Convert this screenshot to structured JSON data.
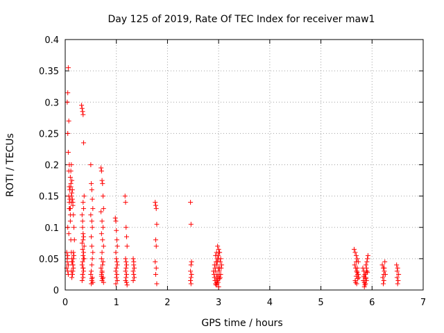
{
  "chart_data": {
    "type": "scatter",
    "title": "Day 125 of 2019, Rate Of TEC Index for receiver maw1",
    "xlabel": "GPS time / hours",
    "ylabel": "ROTI / TECUs",
    "xlim": [
      0,
      7
    ],
    "ylim": [
      0,
      0.4
    ],
    "xticks": [
      0,
      1,
      2,
      3,
      4,
      5,
      6,
      7
    ],
    "xtick_labels": [
      "0",
      "1",
      "2",
      "3",
      "4",
      "5",
      "6",
      "7"
    ],
    "yticks": [
      0,
      0.05,
      0.1,
      0.15,
      0.2,
      0.25,
      0.3,
      0.35,
      0.4
    ],
    "ytick_labels": [
      "0",
      "0.05",
      "0.1",
      "0.15",
      "0.2",
      "0.25",
      "0.3",
      "0.35",
      "0.4"
    ],
    "grid": true,
    "marker": "+",
    "color": "#ff0000",
    "series": [
      {
        "name": "ROTI",
        "x": [
          0.03,
          0.04,
          0.05,
          0.06,
          0.03,
          0.04,
          0.05,
          0.06,
          0.05,
          0.07,
          0.08,
          0.07,
          0.08,
          0.09,
          0.1,
          0.11,
          0.12,
          0.1,
          0.11,
          0.12,
          0.13,
          0.14,
          0.15,
          0.13,
          0.14,
          0.15,
          0.16,
          0.17,
          0.16,
          0.15,
          0.14,
          0.13,
          0.12,
          0.11,
          0.1,
          0.09,
          0.08,
          0.07,
          0.06,
          0.05,
          0.04,
          0.05,
          0.06,
          0.07,
          0.08,
          0.09,
          0.1,
          0.11,
          0.12,
          0.13,
          0.14,
          0.15,
          0.16,
          0.17,
          0.18,
          0.16,
          0.15,
          0.14,
          0.13,
          0.12,
          0.32,
          0.33,
          0.34,
          0.35,
          0.36,
          0.37,
          0.35,
          0.33,
          0.34,
          0.36,
          0.35,
          0.33,
          0.34,
          0.36,
          0.35,
          0.37,
          0.34,
          0.33,
          0.35,
          0.36,
          0.34,
          0.35,
          0.33,
          0.36,
          0.34,
          0.35,
          0.37,
          0.36,
          0.35,
          0.34,
          0.5,
          0.51,
          0.52,
          0.53,
          0.54,
          0.5,
          0.52,
          0.53,
          0.51,
          0.52,
          0.54,
          0.53,
          0.52,
          0.51,
          0.5,
          0.53,
          0.52,
          0.54,
          0.51,
          0.52,
          0.7,
          0.71,
          0.72,
          0.73,
          0.74,
          0.75,
          0.7,
          0.72,
          0.74,
          0.71,
          0.73,
          0.75,
          0.72,
          0.71,
          0.74,
          0.73,
          0.7,
          0.72,
          0.71,
          0.74,
          0.73,
          0.72,
          0.75,
          0.71,
          0.72,
          0.98,
          0.99,
          1.0,
          1.01,
          1.02,
          0.99,
          1.0,
          1.01,
          1.02,
          1.0,
          0.99,
          1.01,
          1.0,
          1.02,
          0.99,
          1.17,
          1.18,
          1.19,
          1.2,
          1.21,
          1.18,
          1.19,
          1.2,
          1.19,
          1.18,
          1.2,
          1.19,
          1.18,
          1.2,
          1.21,
          1.33,
          1.34,
          1.35,
          1.33,
          1.34,
          1.35,
          1.34,
          1.33,
          1.76,
          1.77,
          1.78,
          1.79,
          1.77,
          1.78,
          1.76,
          1.78,
          1.77,
          1.79,
          2.45,
          2.46,
          2.47,
          2.46,
          2.45,
          2.47,
          2.46,
          2.45,
          2.46,
          2.9,
          2.92,
          2.94,
          2.96,
          2.98,
          3.0,
          3.02,
          3.04,
          3.06,
          2.91,
          2.93,
          2.95,
          2.97,
          2.99,
          3.01,
          3.03,
          3.05,
          2.92,
          2.94,
          2.96,
          2.98,
          3.0,
          3.02,
          3.04,
          2.93,
          2.95,
          2.97,
          2.99,
          3.01,
          3.03,
          2.94,
          2.96,
          2.98,
          3.0,
          3.02,
          2.95,
          2.97,
          2.99,
          3.01,
          2.96,
          2.98,
          3.0,
          5.65,
          5.67,
          5.69,
          5.71,
          5.73,
          5.66,
          5.68,
          5.7,
          5.72,
          5.74,
          5.67,
          5.69,
          5.71,
          5.73,
          5.68,
          5.7,
          5.72,
          5.69,
          5.71,
          5.7,
          5.82,
          5.84,
          5.86,
          5.88,
          5.9,
          5.92,
          5.83,
          5.85,
          5.87,
          5.89,
          5.91,
          5.84,
          5.86,
          5.88,
          5.9,
          5.85,
          5.87,
          5.89,
          5.86,
          5.88,
          5.87,
          5.91,
          5.89,
          6.2,
          6.22,
          6.24,
          6.26,
          6.21,
          6.23,
          6.25,
          6.22,
          6.24,
          6.23,
          6.48,
          6.5,
          6.52,
          6.49,
          6.51,
          6.5,
          6.49
        ],
        "y": [
          0.035,
          0.045,
          0.055,
          0.04,
          0.06,
          0.05,
          0.03,
          0.025,
          0.1,
          0.09,
          0.13,
          0.15,
          0.14,
          0.16,
          0.18,
          0.17,
          0.15,
          0.12,
          0.19,
          0.2,
          0.175,
          0.16,
          0.14,
          0.05,
          0.045,
          0.04,
          0.035,
          0.055,
          0.05,
          0.03,
          0.025,
          0.045,
          0.06,
          0.08,
          0.11,
          0.13,
          0.165,
          0.19,
          0.22,
          0.25,
          0.3,
          0.315,
          0.355,
          0.27,
          0.2,
          0.145,
          0.13,
          0.165,
          0.14,
          0.155,
          0.145,
          0.135,
          0.12,
          0.1,
          0.08,
          0.06,
          0.04,
          0.025,
          0.02,
          0.03,
          0.295,
          0.29,
          0.285,
          0.28,
          0.235,
          0.15,
          0.14,
          0.12,
          0.1,
          0.085,
          0.08,
          0.075,
          0.065,
          0.06,
          0.055,
          0.05,
          0.045,
          0.04,
          0.035,
          0.03,
          0.025,
          0.02,
          0.015,
          0.13,
          0.11,
          0.09,
          0.07,
          0.05,
          0.035,
          0.025,
          0.2,
          0.17,
          0.16,
          0.145,
          0.13,
          0.12,
          0.11,
          0.1,
          0.085,
          0.07,
          0.06,
          0.05,
          0.04,
          0.03,
          0.025,
          0.02,
          0.015,
          0.012,
          0.01,
          0.018,
          0.195,
          0.19,
          0.175,
          0.17,
          0.15,
          0.13,
          0.125,
          0.11,
          0.1,
          0.09,
          0.08,
          0.07,
          0.06,
          0.05,
          0.045,
          0.04,
          0.035,
          0.03,
          0.025,
          0.02,
          0.018,
          0.015,
          0.012,
          0.022,
          0.028,
          0.115,
          0.11,
          0.095,
          0.08,
          0.07,
          0.06,
          0.05,
          0.045,
          0.04,
          0.035,
          0.03,
          0.025,
          0.02,
          0.015,
          0.01,
          0.15,
          0.14,
          0.1,
          0.085,
          0.07,
          0.05,
          0.045,
          0.04,
          0.035,
          0.03,
          0.025,
          0.02,
          0.015,
          0.012,
          0.008,
          0.05,
          0.04,
          0.035,
          0.03,
          0.025,
          0.02,
          0.045,
          0.015,
          0.14,
          0.135,
          0.13,
          0.105,
          0.08,
          0.07,
          0.045,
          0.035,
          0.025,
          0.01,
          0.14,
          0.105,
          0.045,
          0.04,
          0.03,
          0.025,
          0.02,
          0.015,
          0.01,
          0.03,
          0.04,
          0.055,
          0.06,
          0.07,
          0.065,
          0.06,
          0.05,
          0.04,
          0.025,
          0.035,
          0.045,
          0.05,
          0.055,
          0.06,
          0.045,
          0.035,
          0.02,
          0.03,
          0.04,
          0.045,
          0.05,
          0.035,
          0.025,
          0.015,
          0.02,
          0.025,
          0.035,
          0.03,
          0.02,
          0.01,
          0.012,
          0.015,
          0.02,
          0.018,
          0.008,
          0.01,
          0.012,
          0.025,
          0.015,
          0.02,
          0.005,
          0.065,
          0.06,
          0.055,
          0.05,
          0.045,
          0.04,
          0.035,
          0.03,
          0.025,
          0.02,
          0.015,
          0.045,
          0.035,
          0.025,
          0.012,
          0.03,
          0.018,
          0.022,
          0.028,
          0.01,
          0.035,
          0.03,
          0.025,
          0.02,
          0.045,
          0.055,
          0.015,
          0.012,
          0.01,
          0.035,
          0.028,
          0.022,
          0.008,
          0.018,
          0.03,
          0.005,
          0.025,
          0.015,
          0.02,
          0.04,
          0.01,
          0.05,
          0.03,
          0.04,
          0.035,
          0.03,
          0.025,
          0.02,
          0.015,
          0.045,
          0.01,
          0.035,
          0.025,
          0.04,
          0.035,
          0.025,
          0.02,
          0.015,
          0.01,
          0.03
        ]
      }
    ]
  }
}
